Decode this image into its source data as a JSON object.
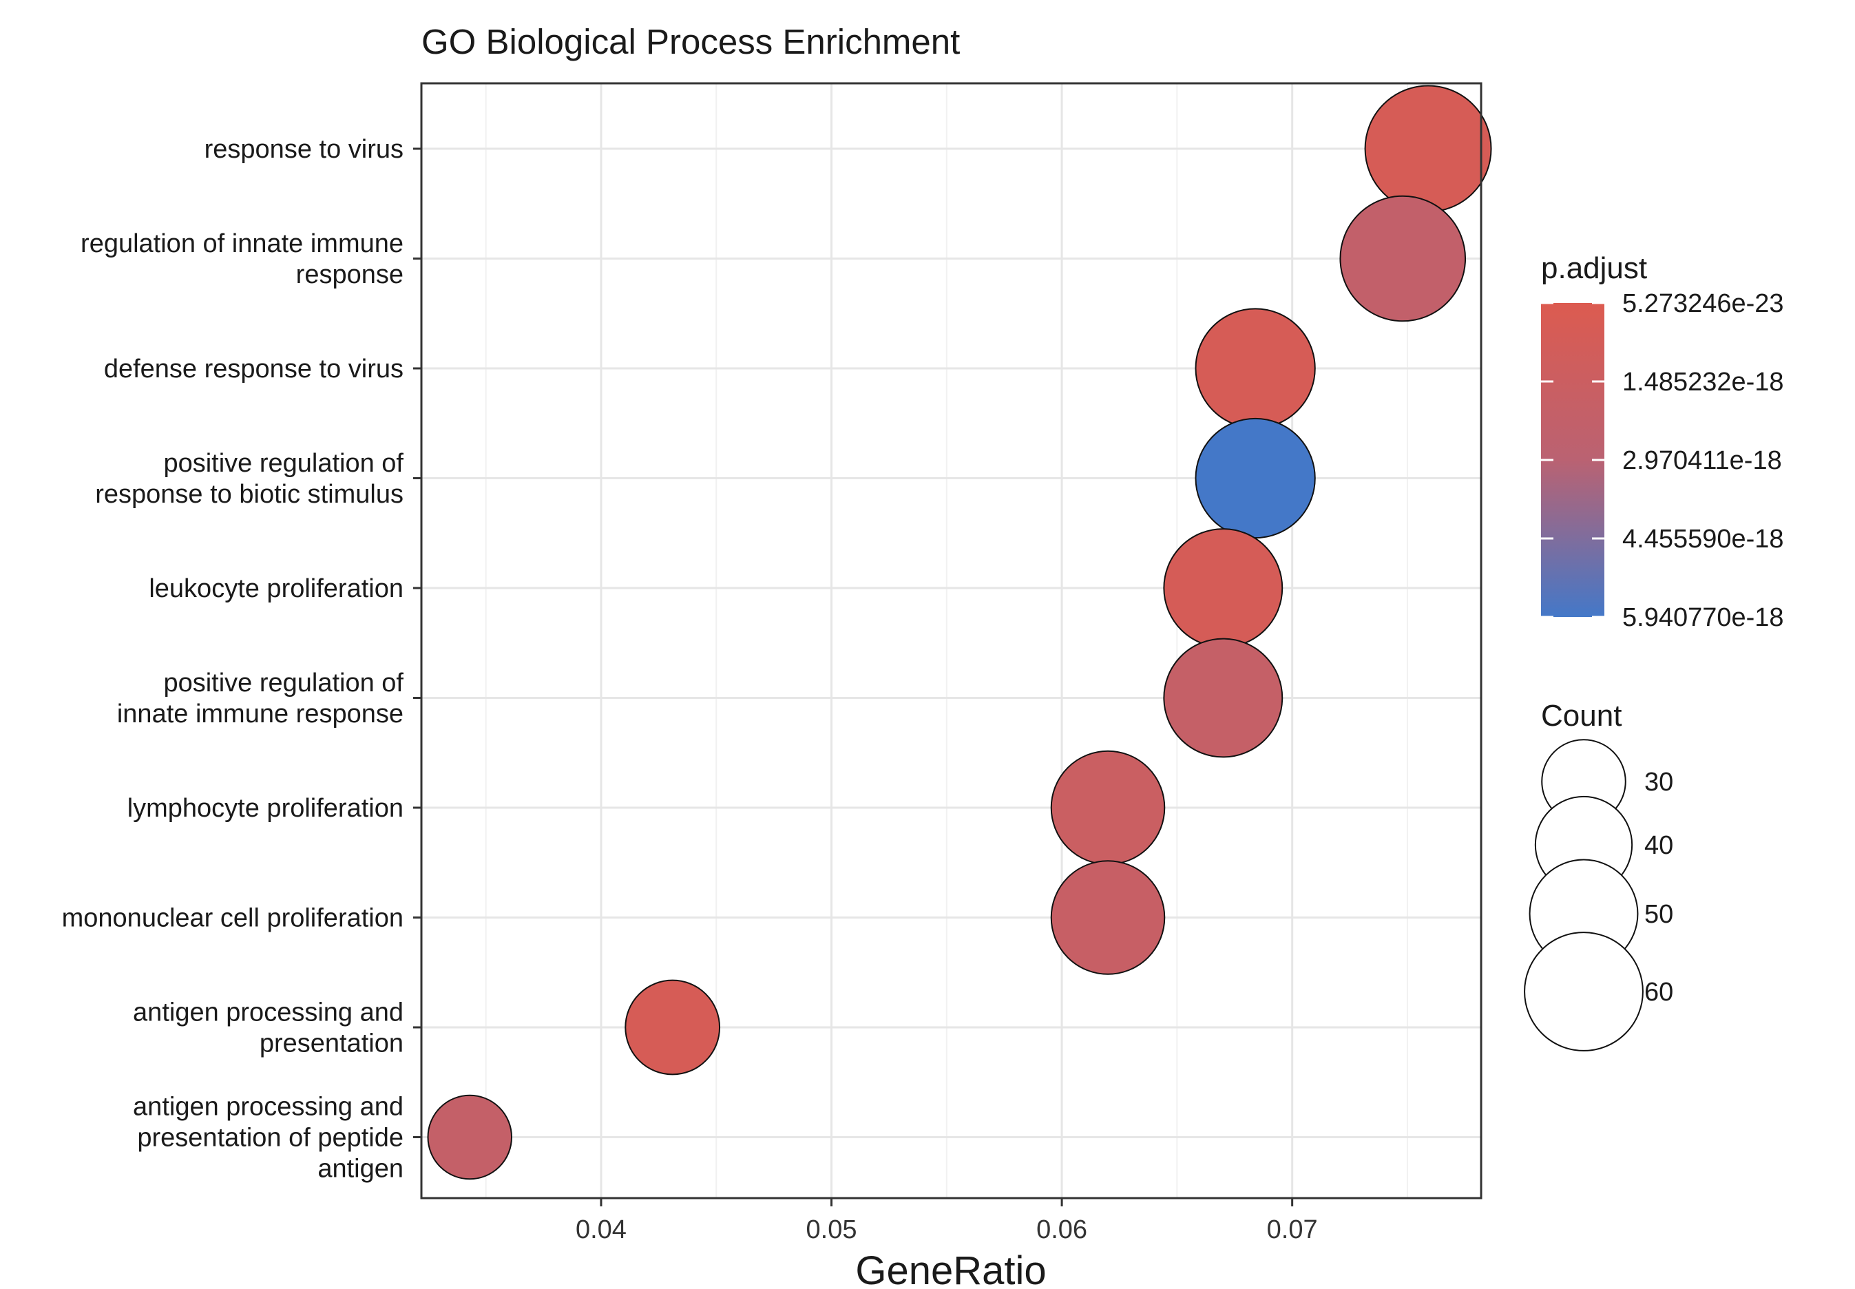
{
  "chart_data": {
    "type": "scatter",
    "title": "GO Biological Process Enrichment",
    "xlabel": "GeneRatio",
    "ylabel": "",
    "xlim": [
      0.0322,
      0.0782
    ],
    "x_ticks": [
      0.04,
      0.05,
      0.06,
      0.07
    ],
    "x_tick_labels": [
      "0.04",
      "0.05",
      "0.06",
      "0.07"
    ],
    "grid": true,
    "categories": [
      [
        "response to virus"
      ],
      [
        "regulation of innate immune",
        "response"
      ],
      [
        "defense response to virus"
      ],
      [
        "positive regulation of",
        "response to biotic stimulus"
      ],
      [
        "leukocyte proliferation"
      ],
      [
        "positive regulation of",
        "innate immune response"
      ],
      [
        "lymphocyte proliferation"
      ],
      [
        "mononuclear cell proliferation"
      ],
      [
        "antigen processing and",
        "presentation"
      ],
      [
        "antigen processing and",
        "presentation of peptide",
        "antigen"
      ]
    ],
    "points": [
      {
        "x": 0.0759,
        "count": 68,
        "p_adjust": 5.5e-19
      },
      {
        "x": 0.0748,
        "count": 67,
        "p_adjust": 2.3e-18
      },
      {
        "x": 0.0684,
        "count": 61,
        "p_adjust": 5e-19
      },
      {
        "x": 0.0684,
        "count": 61,
        "p_adjust": 5.94077e-18
      },
      {
        "x": 0.067,
        "count": 60,
        "p_adjust": 6e-19
      },
      {
        "x": 0.067,
        "count": 60,
        "p_adjust": 2e-18
      },
      {
        "x": 0.062,
        "count": 55,
        "p_adjust": 1.6e-18
      },
      {
        "x": 0.062,
        "count": 55,
        "p_adjust": 1.8e-18
      },
      {
        "x": 0.0431,
        "count": 38,
        "p_adjust": 5e-19
      },
      {
        "x": 0.0343,
        "count": 30,
        "p_adjust": 2.1e-18
      }
    ],
    "color_legend": {
      "title": "p.adjust",
      "min": 5.273246e-23,
      "max": 5.94077e-18,
      "low_color": "#dc5b50",
      "mid_color": "#ba6272",
      "high_color": "#4478c8",
      "ticks": [
        5.273246e-23,
        1.485232e-18,
        2.970411e-18,
        4.45559e-18,
        5.94077e-18
      ],
      "tick_labels": [
        "5.273246e-23",
        "1.485232e-18",
        "2.970411e-18",
        "4.455590e-18",
        "5.940770e-18"
      ]
    },
    "size_legend": {
      "title": "Count",
      "values": [
        30,
        40,
        50,
        60
      ],
      "labels": [
        "30",
        "40",
        "50",
        "60"
      ]
    },
    "legend_position": "right"
  }
}
